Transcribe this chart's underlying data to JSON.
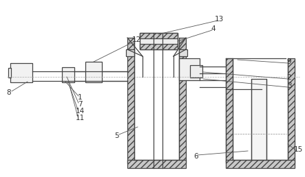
{
  "bg_color": "#ffffff",
  "line_color": "#444444",
  "label_color": "#333333",
  "lw": 0.9,
  "label_fs": 7.5,
  "hatch_fc": "#c8c8c8"
}
